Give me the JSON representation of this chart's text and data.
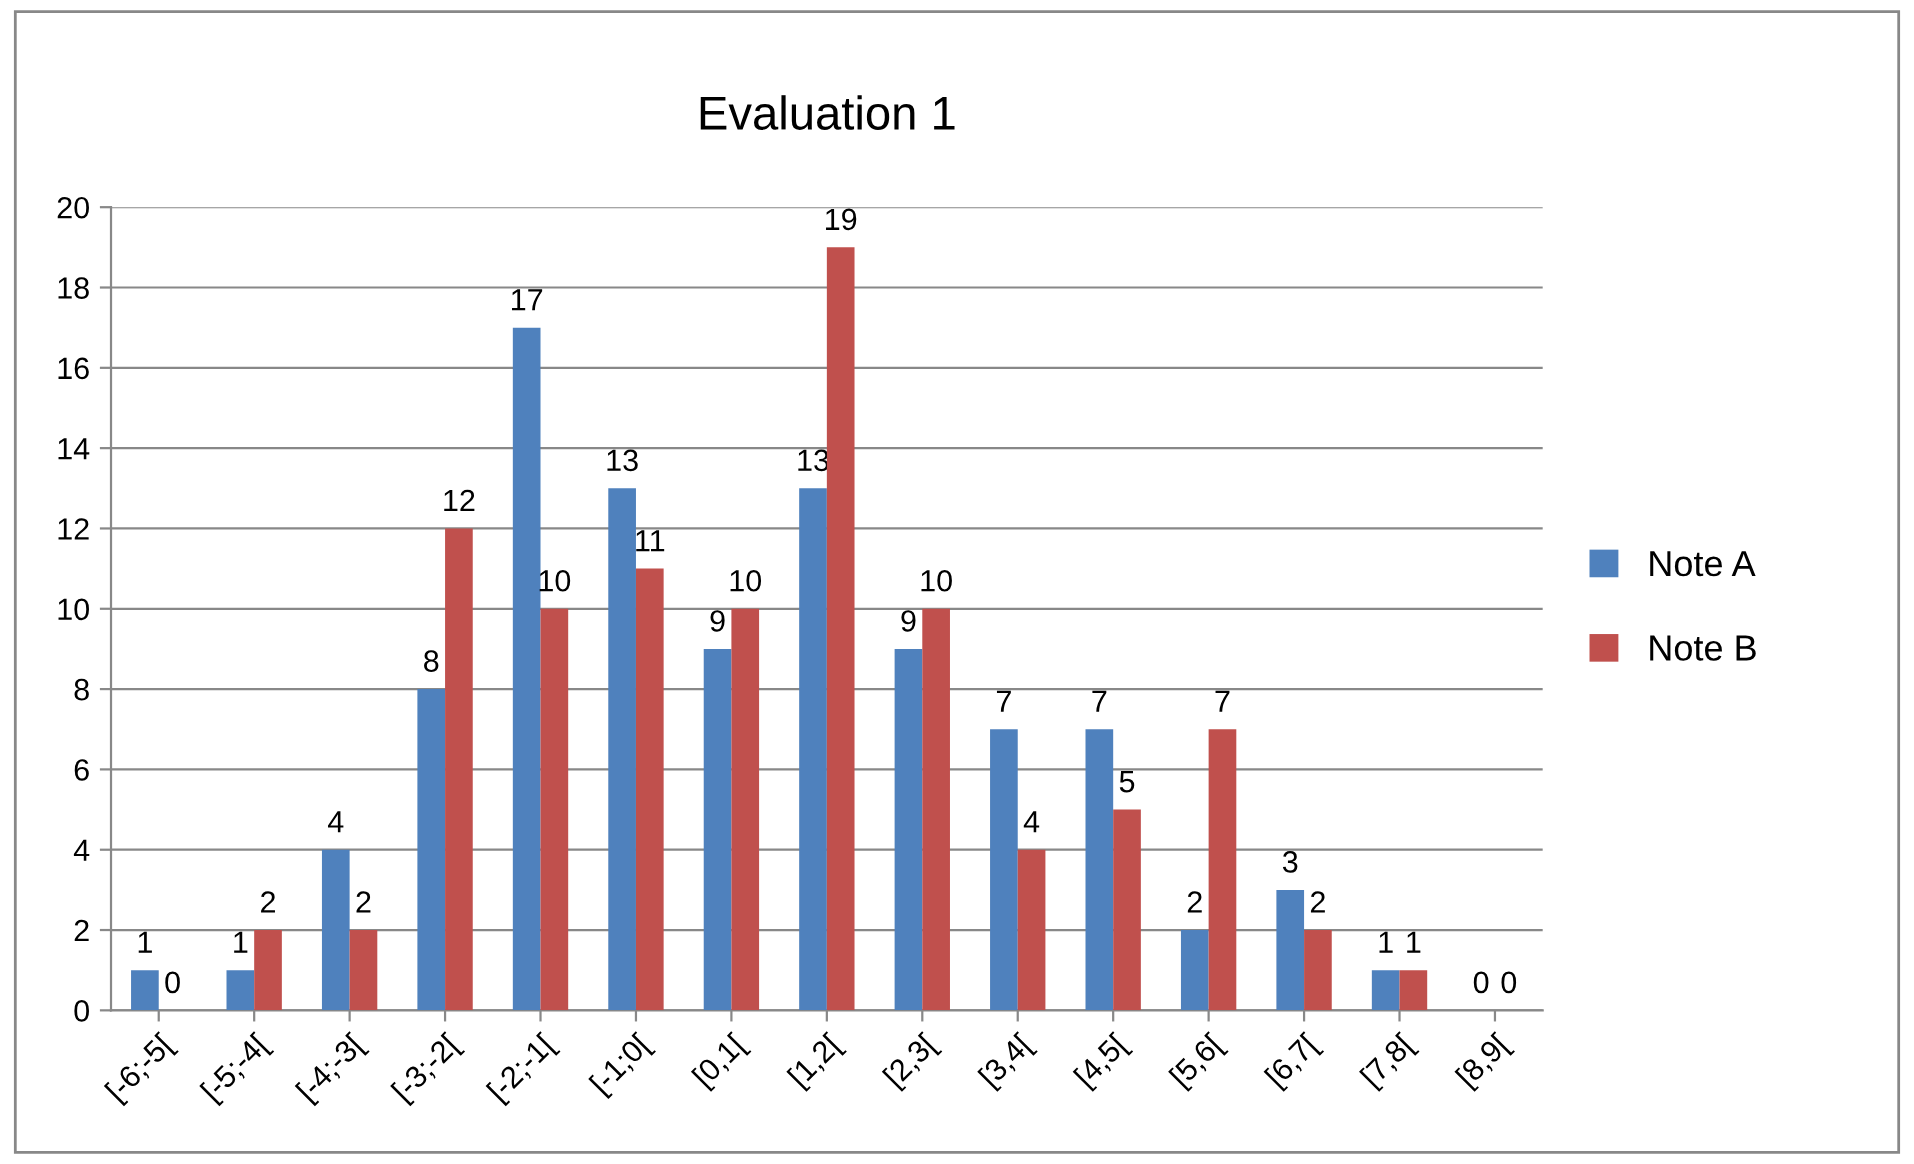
{
  "chart_data": {
    "type": "bar",
    "title": "Evaluation 1",
    "categories": [
      "[-6;-5[",
      "[-5;-4[",
      "[-4;-3[",
      "[-3;-2[",
      "[-2;-1[",
      "[-1;0[",
      "[0,1[",
      "[1,2[",
      "[2,3[",
      "[3,4[",
      "[4,5[",
      "[5,6[",
      "[6,7[",
      "[7,8[",
      "[8,9["
    ],
    "series": [
      {
        "name": "Note A",
        "color": "#4f81bd",
        "values": [
          1,
          1,
          4,
          8,
          17,
          13,
          9,
          13,
          9,
          7,
          7,
          2,
          3,
          1,
          0
        ]
      },
      {
        "name": "Note B",
        "color": "#c0504d",
        "values": [
          0,
          2,
          2,
          12,
          10,
          11,
          10,
          19,
          10,
          4,
          5,
          7,
          2,
          1,
          0
        ]
      }
    ],
    "ylim": [
      0,
      20
    ],
    "yticks": [
      0,
      2,
      4,
      6,
      8,
      10,
      12,
      14,
      16,
      18,
      20
    ],
    "grid": "y",
    "legend": "right",
    "data_labels": true
  }
}
